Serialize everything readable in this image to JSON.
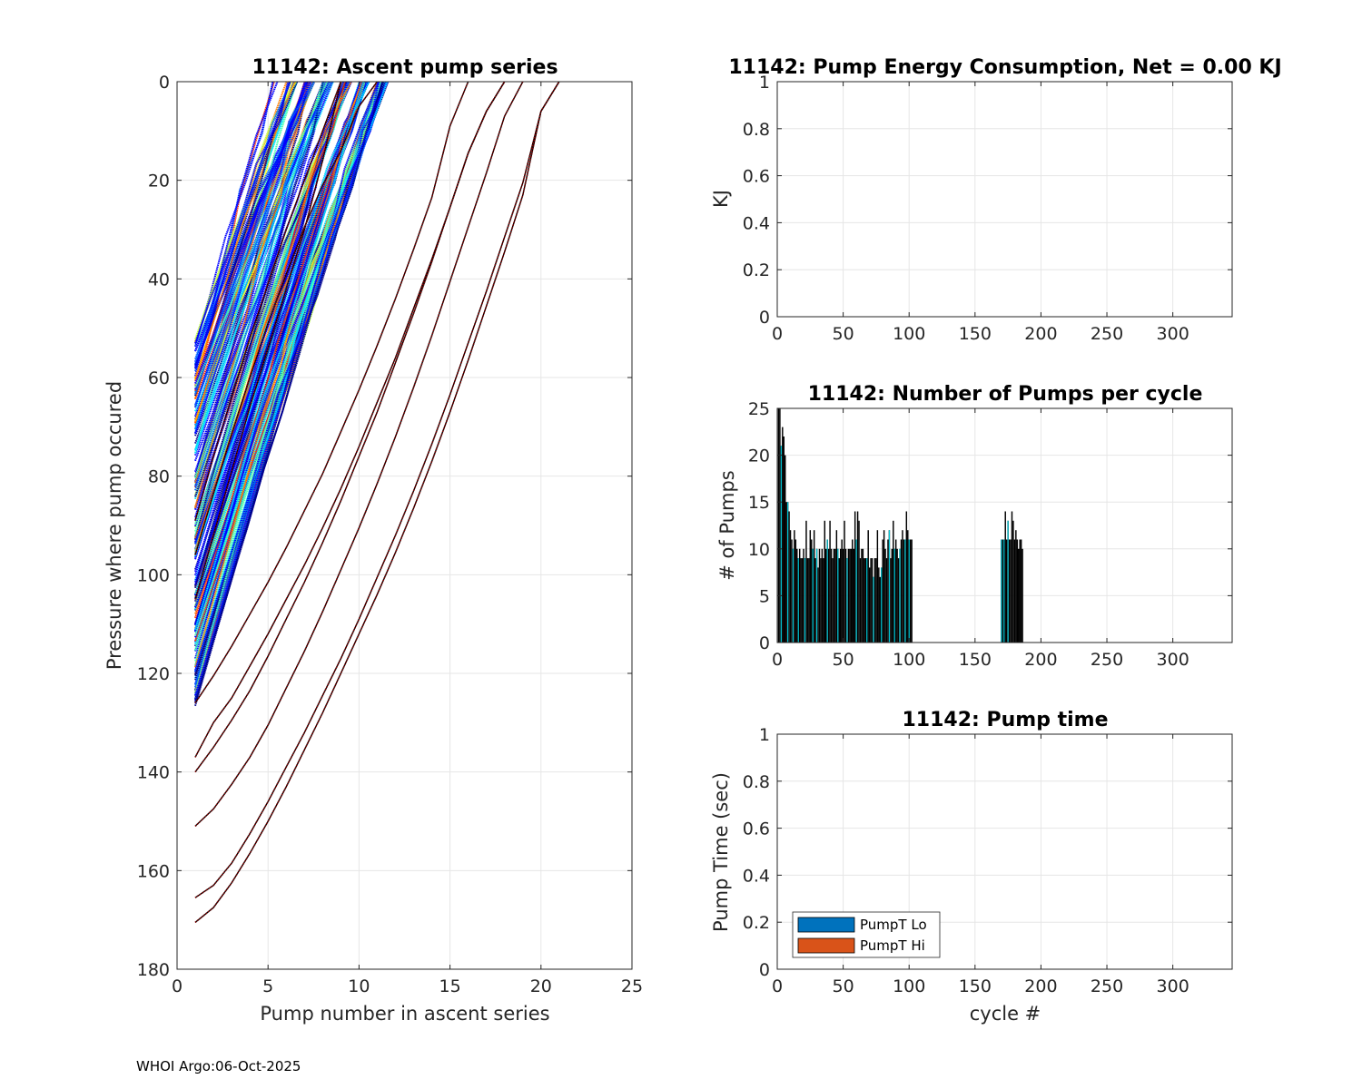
{
  "footer_text": "WHOI Argo:06-Oct-2025",
  "chart_data": [
    {
      "id": "ascent",
      "type": "line",
      "title": "11142: Ascent pump series",
      "xlabel": "Pump number in ascent series",
      "ylabel": "Pressure where pump occured",
      "xlim": [
        0,
        25
      ],
      "ylim": [
        0,
        180
      ],
      "y_reversed": true,
      "grid": true,
      "xticks": [
        0,
        5,
        10,
        15,
        20,
        25
      ],
      "yticks": [
        0,
        20,
        40,
        60,
        80,
        100,
        120,
        140,
        160,
        180
      ],
      "series_colors": [
        "#00008f",
        "#0000ff",
        "#0060ff",
        "#00dfff",
        "#4fffaf",
        "#bfff3f",
        "#ffff00",
        "#ff8000",
        "#ff3000",
        "#800000"
      ],
      "series": [
        {
          "name": "p1",
          "color": "#800000",
          "x": [
            1,
            2,
            3,
            4,
            5,
            6,
            7,
            8,
            9,
            10,
            11,
            12,
            13,
            14,
            15,
            16,
            17,
            18,
            19,
            20,
            21
          ],
          "y": [
            170.5,
            167.5,
            162.5,
            156.5,
            150,
            143,
            135.5,
            128,
            120,
            112,
            104,
            95.5,
            86.5,
            77,
            67,
            56.5,
            45.5,
            34.5,
            23,
            6,
            0
          ]
        },
        {
          "name": "p2",
          "color": "#800000",
          "x": [
            1,
            2,
            3,
            4,
            5,
            6,
            7,
            8,
            9,
            10,
            11,
            12,
            13,
            14,
            15,
            16,
            17,
            18,
            19,
            20,
            21
          ],
          "y": [
            165.5,
            163,
            158.5,
            152.5,
            146,
            139,
            132,
            124.5,
            117,
            109,
            100.5,
            92,
            83,
            73.5,
            63.5,
            53,
            42.5,
            31.5,
            20.5,
            6,
            0
          ]
        },
        {
          "name": "p3",
          "color": "#800000",
          "x": [
            1,
            2,
            3,
            4,
            5,
            6,
            7,
            8,
            9,
            10,
            11,
            12,
            13,
            14,
            15,
            16,
            17,
            18,
            19
          ],
          "y": [
            151,
            147.5,
            142.5,
            137,
            130.5,
            123,
            115.5,
            107.5,
            99,
            90.5,
            81.5,
            72,
            62,
            51.5,
            40.5,
            29.5,
            18.5,
            7,
            0
          ]
        },
        {
          "name": "p4",
          "color": "#800000",
          "x": [
            1,
            2,
            3,
            4,
            5,
            6,
            7,
            8,
            9,
            10,
            11,
            12,
            13,
            14,
            15,
            16,
            17,
            18
          ],
          "y": [
            140,
            135,
            129.5,
            123.5,
            116.5,
            109,
            101.5,
            93.5,
            85,
            76,
            67,
            57,
            47,
            36.5,
            25.5,
            14.5,
            6,
            0
          ]
        },
        {
          "name": "p5",
          "color": "#800000",
          "x": [
            1,
            2,
            3,
            4,
            5,
            6,
            7,
            8,
            9,
            10,
            11,
            12,
            13,
            14,
            15,
            16,
            17,
            18
          ],
          "y": [
            137,
            130,
            125,
            118.5,
            112,
            105,
            98,
            90.5,
            82.5,
            74,
            65,
            56,
            46,
            36,
            25.5,
            14.5,
            6,
            0
          ]
        },
        {
          "name": "p6",
          "color": "#800000",
          "x": [
            1,
            2,
            3,
            4,
            5,
            6,
            7,
            8,
            9,
            10,
            11,
            12,
            13,
            14,
            15,
            16
          ],
          "y": [
            126,
            120.5,
            114.5,
            108,
            101.5,
            94.5,
            87,
            79.5,
            71,
            62.5,
            53.5,
            44,
            34,
            23.5,
            9,
            0
          ]
        },
        {
          "name": "p7",
          "color": "#800000",
          "x": [
            1,
            2,
            3,
            4,
            5,
            6,
            7,
            8,
            9,
            10,
            11
          ],
          "y": [
            96,
            83.5,
            71.5,
            60,
            49,
            39,
            29.5,
            21,
            14,
            5,
            0
          ]
        },
        {
          "name": "p8",
          "color": "#800000",
          "x": [
            1,
            2,
            3,
            4,
            5,
            6,
            7,
            8,
            9
          ],
          "y": [
            89,
            76,
            64,
            52,
            41,
            30,
            20,
            10,
            0
          ]
        },
        {
          "name": "p9",
          "color": "#800000",
          "x": [
            1,
            2,
            3,
            4,
            5,
            6,
            7,
            8,
            9
          ],
          "y": [
            105,
            92,
            79,
            66,
            54,
            42,
            30,
            16,
            0
          ]
        }
      ],
      "band_note": "dense bundle of ~180 ascent series colored by cycle, starting near pump 1 at 52-127 dbar and reaching the surface by pump 6-12"
    },
    {
      "id": "energy",
      "type": "bar",
      "title": "11142: Pump Energy Consumption,  Net =   0.00 KJ",
      "xlabel": "",
      "ylabel": "KJ",
      "xlim": [
        0,
        345
      ],
      "ylim": [
        0,
        1
      ],
      "grid": true,
      "xticks": [
        0,
        50,
        100,
        150,
        200,
        250,
        300
      ],
      "yticks": [
        0,
        0.2,
        0.4,
        0.6,
        0.8,
        1
      ],
      "ytick_labels": [
        "0",
        "0.2",
        "0.4",
        "0.6",
        "0.8",
        "1"
      ],
      "values": []
    },
    {
      "id": "pumps",
      "type": "bar",
      "title": "11142: Number of Pumps per cycle",
      "xlabel": "",
      "ylabel": "# of Pumps",
      "xlim": [
        0,
        345
      ],
      "ylim": [
        0,
        25
      ],
      "grid": true,
      "xticks": [
        0,
        50,
        100,
        150,
        200,
        250,
        300
      ],
      "yticks": [
        0,
        5,
        10,
        15,
        20,
        25
      ],
      "bar_color": "#000000",
      "accent_color": "#00c8d8",
      "cycles": [
        1,
        2,
        3,
        4,
        5,
        6,
        7,
        8,
        9,
        10,
        11,
        12,
        13,
        14,
        15,
        16,
        17,
        18,
        19,
        20,
        21,
        22,
        23,
        24,
        25,
        26,
        27,
        28,
        29,
        30,
        31,
        32,
        33,
        34,
        35,
        36,
        37,
        38,
        39,
        40,
        41,
        42,
        43,
        44,
        45,
        46,
        47,
        48,
        49,
        50,
        51,
        52,
        53,
        54,
        55,
        56,
        57,
        58,
        59,
        60,
        61,
        62,
        63,
        64,
        65,
        66,
        67,
        68,
        69,
        70,
        71,
        72,
        73,
        74,
        75,
        76,
        77,
        78,
        79,
        80,
        81,
        82,
        83,
        84,
        85,
        86,
        87,
        88,
        89,
        90,
        91,
        92,
        93,
        94,
        95,
        96,
        97,
        98,
        99,
        100,
        101,
        102,
        170,
        171,
        172,
        173,
        174,
        175,
        176,
        177,
        178,
        179,
        180,
        181,
        182,
        183,
        184,
        185,
        186,
        187,
        188
      ],
      "values": [
        25,
        25,
        21,
        23,
        22,
        20,
        15,
        15,
        14,
        12,
        11,
        10,
        12,
        11,
        10,
        9,
        10,
        9,
        9,
        10,
        9,
        13,
        9,
        9,
        12,
        11,
        10,
        12,
        9,
        10,
        8,
        10,
        9,
        10,
        9,
        13,
        10,
        11,
        10,
        13,
        10,
        9,
        10,
        10,
        12,
        10,
        9,
        10,
        11,
        10,
        13,
        10,
        9,
        10,
        10,
        10,
        11,
        10,
        14,
        11,
        14,
        13,
        9,
        10,
        10,
        9,
        9,
        9,
        12,
        8,
        9,
        9,
        7,
        9,
        9,
        12,
        8,
        7,
        8,
        11,
        12,
        10,
        9,
        11,
        12,
        9,
        10,
        13,
        10,
        11,
        10,
        9,
        10,
        11,
        12,
        11,
        11,
        14,
        12,
        11,
        11,
        11,
        11,
        11,
        11,
        14,
        11,
        13,
        11,
        11,
        14,
        13,
        11,
        12,
        11,
        10,
        11,
        11,
        10
      ],
      "accent_cycles": [
        3,
        8,
        12,
        16,
        21,
        27,
        30,
        38,
        46,
        53,
        60,
        68,
        73,
        79,
        85,
        89,
        93,
        97,
        100,
        170,
        172,
        175
      ]
    },
    {
      "id": "pumptime",
      "type": "bar",
      "title": "11142: Pump time",
      "xlabel": "cycle #",
      "ylabel": "Pump Time (sec)",
      "xlim": [
        0,
        345
      ],
      "ylim": [
        0,
        1
      ],
      "grid": true,
      "xticks": [
        0,
        50,
        100,
        150,
        200,
        250,
        300
      ],
      "yticks": [
        0,
        0.2,
        0.4,
        0.6,
        0.8,
        1
      ],
      "ytick_labels": [
        "0",
        "0.2",
        "0.4",
        "0.6",
        "0.8",
        "1"
      ],
      "legend": [
        {
          "label": "PumpT Lo",
          "color": "#0072bd"
        },
        {
          "label": "PumpT Hi",
          "color": "#d95319"
        }
      ],
      "legend_position": "bottom-left",
      "values": []
    }
  ]
}
